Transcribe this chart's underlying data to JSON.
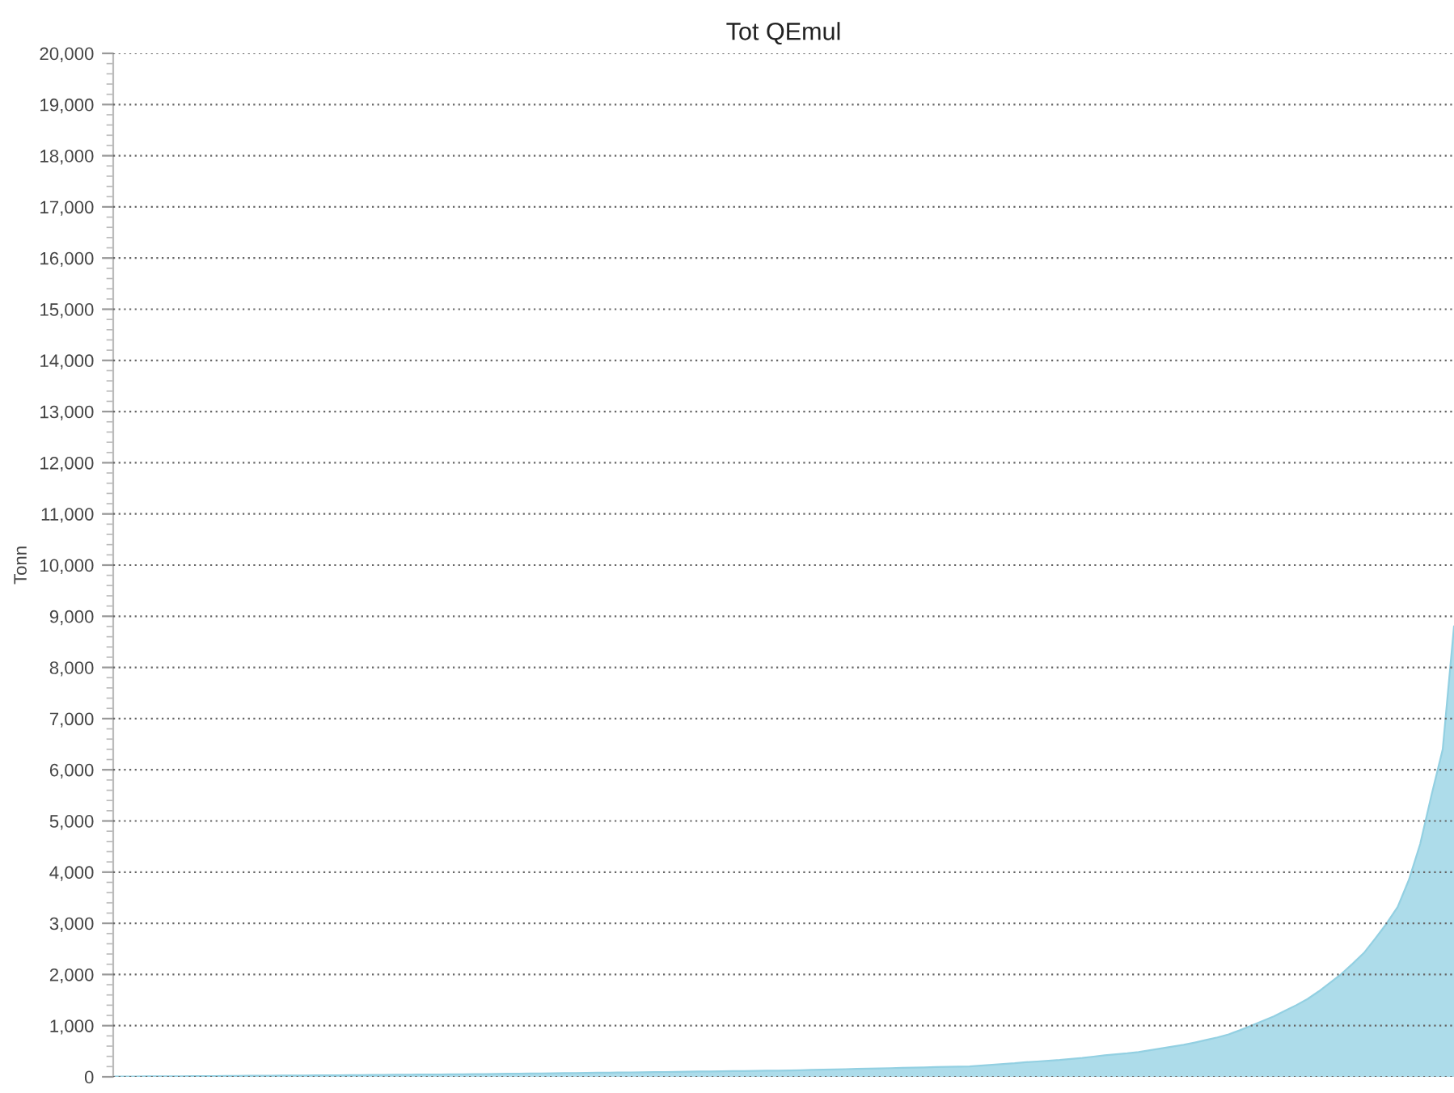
{
  "chart_data": {
    "type": "area",
    "title": "Tot QEmul",
    "ylabel": "Tonn",
    "categories": [
      null,
      null,
      null,
      null,
      null,
      null,
      null,
      null,
      null,
      null,
      null,
      null,
      null,
      null,
      null,
      null,
      null,
      null,
      null,
      null,
      null,
      null,
      null,
      null,
      null,
      null,
      null,
      null,
      null,
      null,
      null,
      null,
      null,
      null,
      null,
      null,
      null,
      null,
      null,
      null,
      null,
      null,
      null,
      null,
      null,
      null,
      null,
      null,
      null,
      null,
      null,
      null,
      null,
      null,
      null,
      null,
      null,
      null,
      null,
      null,
      null,
      null,
      null,
      null,
      null,
      null,
      null,
      null,
      null,
      null,
      null,
      null,
      null,
      null,
      null,
      null,
      null,
      null,
      null,
      null,
      null,
      null,
      null,
      null,
      null,
      null,
      null,
      null,
      null,
      null,
      null,
      null,
      null,
      null,
      null,
      null,
      null,
      null,
      null,
      null,
      null,
      null,
      null,
      null,
      null,
      null,
      null,
      null,
      null,
      null,
      null,
      null,
      null,
      null,
      null,
      null,
      null,
      null,
      null,
      null
    ],
    "values": [
      5,
      6,
      7,
      9,
      10,
      11,
      12,
      14,
      15,
      16,
      18,
      19,
      20,
      21,
      23,
      24,
      25,
      26,
      28,
      29,
      31,
      33,
      35,
      37,
      38,
      40,
      42,
      44,
      46,
      47,
      49,
      51,
      53,
      55,
      57,
      60,
      62,
      65,
      67,
      70,
      72,
      75,
      77,
      80,
      82,
      85,
      87,
      90,
      93,
      95,
      98,
      101,
      103,
      106,
      109,
      112,
      114,
      117,
      120,
      122,
      125,
      128,
      135,
      140,
      145,
      150,
      155,
      160,
      165,
      170,
      175,
      180,
      185,
      190,
      195,
      200,
      205,
      220,
      235,
      250,
      265,
      285,
      300,
      315,
      330,
      350,
      370,
      395,
      420,
      440,
      460,
      485,
      520,
      555,
      590,
      625,
      670,
      720,
      770,
      830,
      910,
      1000,
      1090,
      1180,
      1290,
      1400,
      1520,
      1670,
      1840,
      2010,
      2210,
      2420,
      2700,
      2990,
      3320,
      3850,
      4550,
      5500,
      6400,
      8800
    ],
    "color": "#addcea",
    "ylim": [
      0,
      20000
    ],
    "yticks": [
      {
        "value": 0,
        "label": "0"
      },
      {
        "value": 1000,
        "label": "1,000"
      },
      {
        "value": 2000,
        "label": "2,000"
      },
      {
        "value": 3000,
        "label": "3,000"
      },
      {
        "value": 4000,
        "label": "4,000"
      },
      {
        "value": 5000,
        "label": "5,000"
      },
      {
        "value": 6000,
        "label": "6,000"
      },
      {
        "value": 7000,
        "label": "7,000"
      },
      {
        "value": 8000,
        "label": "8,000"
      },
      {
        "value": 9000,
        "label": "9,000"
      },
      {
        "value": 10000,
        "label": "10,000"
      },
      {
        "value": 11000,
        "label": "11,000"
      },
      {
        "value": 12000,
        "label": "12,000"
      },
      {
        "value": 13000,
        "label": "13,000"
      },
      {
        "value": 14000,
        "label": "14,000"
      },
      {
        "value": 15000,
        "label": "15,000"
      },
      {
        "value": 16000,
        "label": "16,000"
      },
      {
        "value": 17000,
        "label": "17,000"
      },
      {
        "value": 18000,
        "label": "18,000"
      },
      {
        "value": 19000,
        "label": "19,000"
      },
      {
        "value": 20000,
        "label": "20,000"
      }
    ],
    "grid": "y",
    "tick_labels": "y"
  }
}
